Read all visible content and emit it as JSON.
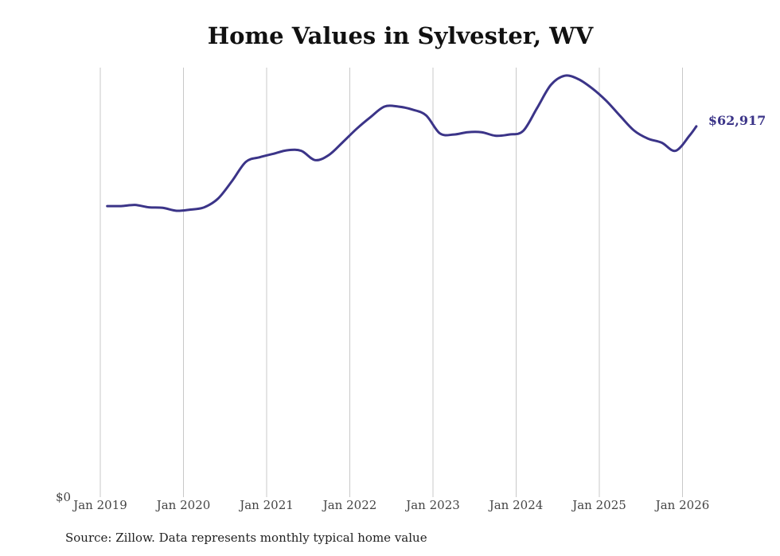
{
  "chart_data": {
    "type": "line",
    "title": "Home Values in Sylvester, WV",
    "xlabel": "",
    "ylabel": "",
    "x_ticks": [
      "Jan 2019",
      "Jan 2020",
      "Jan 2021",
      "Jan 2022",
      "Jan 2023",
      "Jan 2024",
      "Jan 2025",
      "Jan 2026"
    ],
    "y_ticks": [
      "$0"
    ],
    "ylim": [
      0,
      73000
    ],
    "grid": "vertical",
    "legend": "none",
    "line_color": "#3b3488",
    "end_label": "$62,917",
    "series": [
      {
        "x": [
          "2019-02",
          "2019-04",
          "2019-06",
          "2019-08",
          "2019-10",
          "2019-12",
          "2020-02",
          "2020-04",
          "2020-06",
          "2020-08",
          "2020-10",
          "2020-12",
          "2021-02",
          "2021-04",
          "2021-06",
          "2021-08",
          "2021-10",
          "2021-12",
          "2022-02",
          "2022-04",
          "2022-06",
          "2022-08",
          "2022-10",
          "2022-12",
          "2023-02",
          "2023-04",
          "2023-06",
          "2023-08",
          "2023-10",
          "2023-12",
          "2024-02",
          "2024-04",
          "2024-06",
          "2024-08",
          "2024-10",
          "2024-12",
          "2025-02",
          "2025-04",
          "2025-06",
          "2025-08",
          "2025-10",
          "2025-12",
          "2026-02",
          "2026-03"
        ],
        "values": [
          49200,
          49200,
          49400,
          49000,
          48900,
          48400,
          48600,
          49000,
          50500,
          53500,
          56800,
          57600,
          58200,
          58800,
          58700,
          57100,
          58000,
          60200,
          62500,
          64500,
          66300,
          66300,
          65800,
          64800,
          61700,
          61500,
          61900,
          61900,
          61300,
          61500,
          62100,
          66000,
          70000,
          71600,
          71000,
          69400,
          67300,
          64700,
          62200,
          60800,
          60100,
          58700,
          61300,
          62917
        ]
      }
    ]
  },
  "source": "Source: Zillow. Data represents monthly typical home value"
}
